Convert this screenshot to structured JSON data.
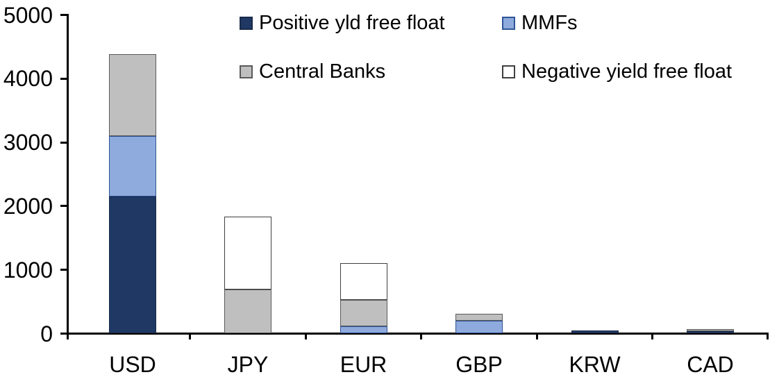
{
  "chart_data": {
    "type": "bar",
    "stacked": true,
    "title": "",
    "xlabel": "",
    "ylabel": "",
    "categories": [
      "USD",
      "JPY",
      "EUR",
      "GBP",
      "KRW",
      "CAD"
    ],
    "series": [
      {
        "name": "Positive yld free float",
        "color": "#1F3864",
        "border_color": "#1A2B4A",
        "values": [
          2150,
          0,
          0,
          0,
          50,
          40
        ]
      },
      {
        "name": "MMFs",
        "color": "#8FAADC",
        "border_color": "#2E5597",
        "values": [
          950,
          0,
          110,
          205,
          0,
          0
        ]
      },
      {
        "name": "Central Banks",
        "color": "#BFBFBF",
        "border_color": "#595959",
        "values": [
          1280,
          690,
          420,
          110,
          0,
          30
        ]
      },
      {
        "name": "Negative yield free float",
        "color": "#FFFFFF",
        "border_color": "#404040",
        "values": [
          0,
          1150,
          575,
          0,
          0,
          0
        ]
      }
    ],
    "y_ticks": [
      0,
      1000,
      2000,
      3000,
      4000,
      5000
    ],
    "ylim": [
      0,
      5000
    ],
    "grid": false,
    "legend_position": "top",
    "legend_rows": [
      [
        0,
        1
      ],
      [
        2,
        3
      ]
    ],
    "axis_color": "#000000",
    "background_color": "#FFFFFF"
  }
}
